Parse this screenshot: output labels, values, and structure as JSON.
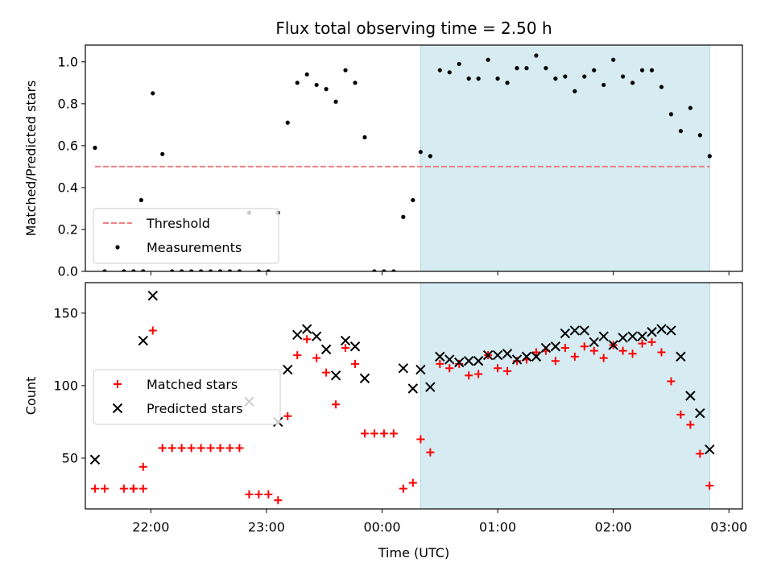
{
  "chart_data": [
    {
      "type": "scatter",
      "title": "Flux total observing time = 2.50 h",
      "xlabel": "",
      "ylabel": "Matched/Predicted stars",
      "xlim": [
        "21:26",
        "03:07"
      ],
      "ylim": [
        0,
        1.08
      ],
      "yticks": [
        0.0,
        0.2,
        0.4,
        0.6,
        0.8,
        1.0
      ],
      "ytick_labels": [
        "0.0",
        "0.2",
        "0.4",
        "0.6",
        "0.8",
        "1.0"
      ],
      "xticks": [
        "22:00",
        "23:00",
        "00:00",
        "01:00",
        "02:00",
        "03:00"
      ],
      "shaded_region": {
        "from": "00:20",
        "to": "02:50",
        "color": "#add8e6"
      },
      "threshold": {
        "name": "Threshold",
        "value": 0.5,
        "from": "21:31",
        "to": "02:50",
        "color": "#f08080"
      },
      "legend": {
        "location": "lower-left",
        "entries": [
          "Threshold",
          "Measurements"
        ]
      },
      "series": [
        {
          "name": "Measurements",
          "marker": "dot",
          "color": "#000000",
          "points": [
            [
              "21:31",
              0.59
            ],
            [
              "21:36",
              0.0
            ],
            [
              "21:46",
              0.0
            ],
            [
              "21:51",
              0.0
            ],
            [
              "21:56",
              0.0
            ],
            [
              "21:56",
              0.0
            ],
            [
              "21:51",
              0.0
            ],
            [
              "21:55",
              0.34
            ],
            [
              "22:01",
              0.85
            ],
            [
              "22:06",
              0.56
            ],
            [
              "22:11",
              0.0
            ],
            [
              "22:16",
              0.0
            ],
            [
              "22:21",
              0.0
            ],
            [
              "22:26",
              0.0
            ],
            [
              "22:31",
              0.0
            ],
            [
              "22:36",
              0.0
            ],
            [
              "22:41",
              0.0
            ],
            [
              "22:46",
              0.0
            ],
            [
              "22:51",
              0.28
            ],
            [
              "22:56",
              0.0
            ],
            [
              "23:01",
              0.0
            ],
            [
              "23:06",
              0.28
            ],
            [
              "23:11",
              0.71
            ],
            [
              "23:16",
              0.9
            ],
            [
              "23:21",
              0.94
            ],
            [
              "23:26",
              0.89
            ],
            [
              "23:31",
              0.87
            ],
            [
              "23:36",
              0.81
            ],
            [
              "23:41",
              0.96
            ],
            [
              "23:46",
              0.9
            ],
            [
              "23:51",
              0.64
            ],
            [
              "23:56",
              0.0
            ],
            [
              "00:01",
              0.0
            ],
            [
              "00:06",
              0.0
            ],
            [
              "00:11",
              0.26
            ],
            [
              "00:16",
              0.34
            ],
            [
              "00:20",
              0.57
            ],
            [
              "00:25",
              0.55
            ],
            [
              "00:30",
              0.96
            ],
            [
              "00:35",
              0.95
            ],
            [
              "00:40",
              0.99
            ],
            [
              "00:45",
              0.92
            ],
            [
              "00:50",
              0.92
            ],
            [
              "00:55",
              1.01
            ],
            [
              "01:00",
              0.92
            ],
            [
              "01:05",
              0.9
            ],
            [
              "01:10",
              0.97
            ],
            [
              "01:15",
              0.97
            ],
            [
              "01:20",
              1.03
            ],
            [
              "01:25",
              0.97
            ],
            [
              "01:30",
              0.92
            ],
            [
              "01:35",
              0.93
            ],
            [
              "01:40",
              0.86
            ],
            [
              "01:45",
              0.93
            ],
            [
              "01:50",
              0.96
            ],
            [
              "01:55",
              0.89
            ],
            [
              "02:00",
              1.01
            ],
            [
              "02:05",
              0.93
            ],
            [
              "02:10",
              0.9
            ],
            [
              "02:15",
              0.96
            ],
            [
              "02:20",
              0.96
            ],
            [
              "02:25",
              0.88
            ],
            [
              "02:30",
              0.75
            ],
            [
              "02:35",
              0.67
            ],
            [
              "02:40",
              0.78
            ],
            [
              "02:45",
              0.65
            ],
            [
              "02:50",
              0.55
            ]
          ]
        }
      ]
    },
    {
      "type": "scatter",
      "title": "",
      "xlabel": "Time (UTC)",
      "ylabel": "Count",
      "xlim": [
        "21:26",
        "03:07"
      ],
      "ylim": [
        15,
        171
      ],
      "yticks": [
        50,
        100,
        150
      ],
      "ytick_labels": [
        "50",
        "100",
        "150"
      ],
      "xticks": [
        "22:00",
        "23:00",
        "00:00",
        "01:00",
        "02:00",
        "03:00"
      ],
      "xtick_labels": [
        "22:00",
        "23:00",
        "00:00",
        "01:00",
        "02:00",
        "03:00"
      ],
      "shaded_region": {
        "from": "00:20",
        "to": "02:50",
        "color": "#add8e6"
      },
      "legend": {
        "location": "center-left",
        "entries": [
          "Matched stars",
          "Predicted stars"
        ]
      },
      "series": [
        {
          "name": "Matched stars",
          "marker": "plus",
          "color": "#ff0000",
          "points": [
            [
              "21:31",
              29
            ],
            [
              "21:36",
              29
            ],
            [
              "21:46",
              29
            ],
            [
              "21:51",
              29
            ],
            [
              "21:56",
              29
            ],
            [
              "21:51",
              29
            ],
            [
              "21:56",
              44
            ],
            [
              "22:01",
              138
            ],
            [
              "22:06",
              57
            ],
            [
              "22:11",
              57
            ],
            [
              "22:16",
              57
            ],
            [
              "22:21",
              57
            ],
            [
              "22:26",
              57
            ],
            [
              "22:31",
              57
            ],
            [
              "22:36",
              57
            ],
            [
              "22:41",
              57
            ],
            [
              "22:46",
              57
            ],
            [
              "22:51",
              25
            ],
            [
              "22:56",
              25
            ],
            [
              "23:01",
              25
            ],
            [
              "23:06",
              21
            ],
            [
              "23:11",
              79
            ],
            [
              "23:16",
              121
            ],
            [
              "23:21",
              132
            ],
            [
              "23:26",
              119
            ],
            [
              "23:31",
              109
            ],
            [
              "23:36",
              87
            ],
            [
              "23:41",
              126
            ],
            [
              "23:46",
              115
            ],
            [
              "23:51",
              67
            ],
            [
              "23:56",
              67
            ],
            [
              "00:01",
              67
            ],
            [
              "00:06",
              67
            ],
            [
              "00:11",
              29
            ],
            [
              "00:16",
              33
            ],
            [
              "00:20",
              63
            ],
            [
              "00:25",
              54
            ],
            [
              "00:30",
              115
            ],
            [
              "00:35",
              112
            ],
            [
              "00:40",
              115
            ],
            [
              "00:45",
              107
            ],
            [
              "00:50",
              108
            ],
            [
              "00:55",
              121
            ],
            [
              "01:00",
              112
            ],
            [
              "01:05",
              110
            ],
            [
              "01:10",
              117
            ],
            [
              "01:15",
              118
            ],
            [
              "01:20",
              123
            ],
            [
              "01:25",
              124
            ],
            [
              "01:30",
              117
            ],
            [
              "01:35",
              126
            ],
            [
              "01:40",
              120
            ],
            [
              "01:45",
              127
            ],
            [
              "01:50",
              124
            ],
            [
              "01:55",
              119
            ],
            [
              "02:00",
              128
            ],
            [
              "02:05",
              124
            ],
            [
              "02:10",
              122
            ],
            [
              "02:15",
              129
            ],
            [
              "02:20",
              130
            ],
            [
              "02:25",
              123
            ],
            [
              "02:30",
              103
            ],
            [
              "02:35",
              80
            ],
            [
              "02:40",
              73
            ],
            [
              "02:45",
              53
            ],
            [
              "02:50",
              31
            ]
          ]
        },
        {
          "name": "Predicted stars",
          "marker": "x",
          "color": "#000000",
          "points": [
            [
              "21:31",
              49
            ],
            [
              "21:56",
              131
            ],
            [
              "22:01",
              162
            ],
            [
              "22:51",
              89
            ],
            [
              "23:06",
              75
            ],
            [
              "23:11",
              111
            ],
            [
              "23:16",
              135
            ],
            [
              "23:21",
              139
            ],
            [
              "23:26",
              134
            ],
            [
              "23:31",
              125
            ],
            [
              "23:36",
              107
            ],
            [
              "23:41",
              131
            ],
            [
              "23:46",
              127
            ],
            [
              "23:51",
              105
            ],
            [
              "00:11",
              112
            ],
            [
              "00:16",
              98
            ],
            [
              "00:20",
              111
            ],
            [
              "00:25",
              99
            ],
            [
              "00:30",
              120
            ],
            [
              "00:35",
              118
            ],
            [
              "00:40",
              116
            ],
            [
              "00:45",
              117
            ],
            [
              "00:50",
              117
            ],
            [
              "00:55",
              121
            ],
            [
              "01:00",
              121
            ],
            [
              "01:05",
              122
            ],
            [
              "01:10",
              118
            ],
            [
              "01:15",
              120
            ],
            [
              "01:20",
              120
            ],
            [
              "01:25",
              126
            ],
            [
              "01:30",
              127
            ],
            [
              "01:35",
              136
            ],
            [
              "01:40",
              138
            ],
            [
              "01:45",
              138
            ],
            [
              "01:50",
              130
            ],
            [
              "01:55",
              134
            ],
            [
              "02:00",
              128
            ],
            [
              "02:05",
              133
            ],
            [
              "02:10",
              134
            ],
            [
              "02:15",
              134
            ],
            [
              "02:20",
              137
            ],
            [
              "02:25",
              139
            ],
            [
              "02:30",
              138
            ],
            [
              "02:35",
              120
            ],
            [
              "02:40",
              93
            ],
            [
              "02:45",
              81
            ],
            [
              "02:50",
              56
            ]
          ]
        }
      ]
    }
  ]
}
